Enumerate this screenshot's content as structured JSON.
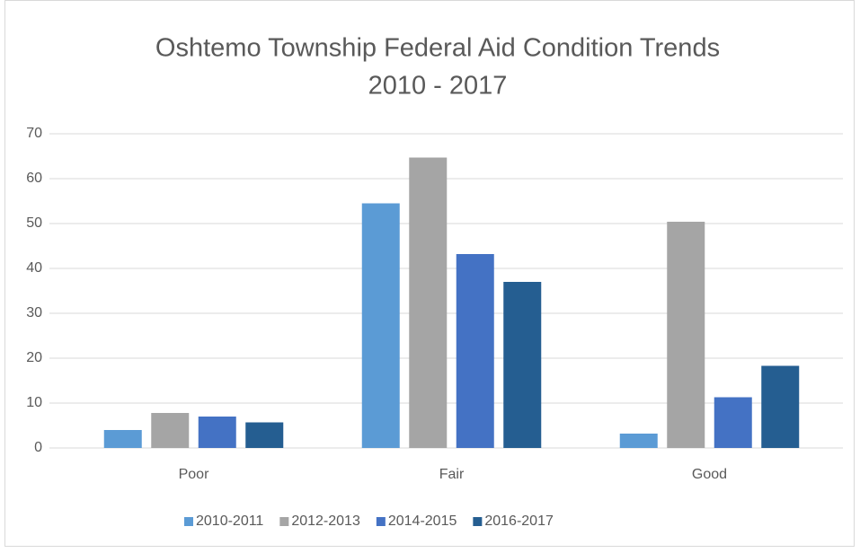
{
  "chart_data": {
    "type": "bar",
    "title": [
      "Oshtemo Township Federal Aid Condition Trends",
      "2010 - 2017"
    ],
    "categories": [
      "Poor",
      "Fair",
      "Good"
    ],
    "series": [
      {
        "name": "2010-2011",
        "color": "#5b9bd5",
        "values": [
          4,
          54.5,
          3.2
        ]
      },
      {
        "name": "2012-2013",
        "color": "#a5a5a5",
        "values": [
          7.8,
          64.7,
          50.4
        ]
      },
      {
        "name": "2014-2015",
        "color": "#4472c4",
        "values": [
          7,
          43.2,
          11.3
        ]
      },
      {
        "name": "2016-2017",
        "color": "#255e91",
        "values": [
          5.7,
          37,
          18.3
        ]
      }
    ],
    "ylim": [
      0,
      70
    ],
    "yticks": [
      0,
      10,
      20,
      30,
      40,
      50,
      60,
      70
    ],
    "grid": true,
    "legend": "bottom"
  }
}
